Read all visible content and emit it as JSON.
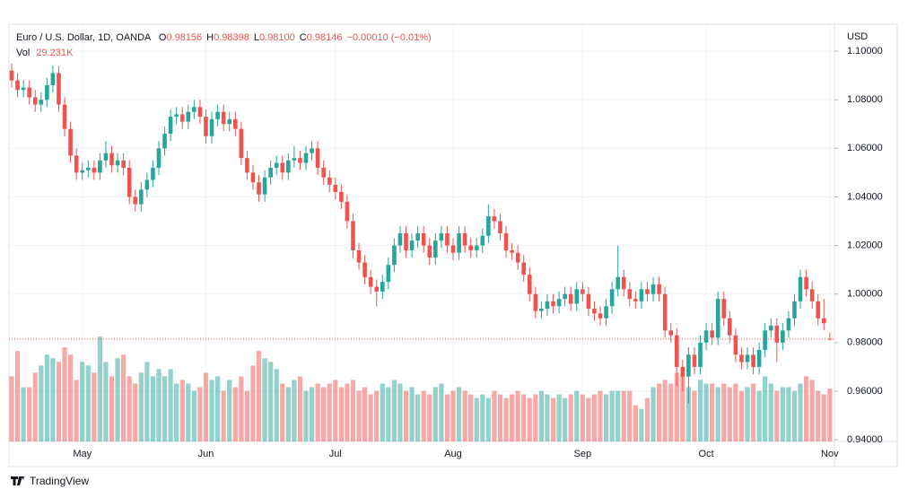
{
  "chart_data": {
    "type": "candlestick",
    "title": "Euro / U.S. Dollar, 1D, OANDA",
    "legend_values": [
      {
        "label": "O",
        "text": "0.98156"
      },
      {
        "label": "H",
        "text": "0.98398"
      },
      {
        "label": "L",
        "text": "0.98100"
      },
      {
        "label": "C",
        "text": "0.98146"
      }
    ],
    "change": "−0.00010 (−0.01%)",
    "volume_name": "Vol",
    "volume_text": "29.231K",
    "currency": "USD",
    "brand": "TradingView",
    "up_color": "#26a69a",
    "down_color": "#ef5350",
    "grid": true,
    "categories": [
      null,
      null,
      null,
      null,
      null,
      null,
      null,
      null,
      null,
      null,
      null,
      null,
      "May",
      null,
      null,
      null,
      null,
      null,
      null,
      null,
      null,
      null,
      null,
      null,
      null,
      null,
      null,
      null,
      null,
      null,
      null,
      null,
      null,
      "Jun",
      null,
      null,
      null,
      null,
      null,
      null,
      null,
      null,
      null,
      null,
      null,
      null,
      null,
      null,
      null,
      null,
      null,
      null,
      null,
      null,
      null,
      "Jul",
      null,
      null,
      null,
      null,
      null,
      null,
      null,
      null,
      null,
      null,
      null,
      null,
      null,
      null,
      null,
      null,
      null,
      null,
      null,
      "Aug",
      null,
      null,
      null,
      null,
      null,
      null,
      null,
      null,
      null,
      null,
      null,
      null,
      null,
      null,
      null,
      null,
      null,
      null,
      null,
      null,
      null,
      "Sep",
      null,
      null,
      null,
      null,
      null,
      null,
      null,
      null,
      null,
      null,
      null,
      null,
      null,
      null,
      null,
      null,
      null,
      null,
      null,
      null,
      "Oct",
      null,
      null,
      null,
      null,
      null,
      null,
      null,
      null,
      null,
      null,
      null,
      null,
      null,
      null,
      null,
      null,
      null,
      null,
      null,
      null,
      "Nov"
    ],
    "open": [
      1.092,
      1.088,
      1.084,
      1.085,
      1.081,
      1.078,
      1.08,
      1.086,
      1.091,
      1.078,
      1.068,
      1.057,
      1.05,
      1.051,
      1.052,
      1.05,
      1.055,
      1.058,
      1.053,
      1.055,
      1.052,
      1.04,
      1.037,
      1.043,
      1.047,
      1.052,
      1.06,
      1.066,
      1.073,
      1.074,
      1.071,
      1.075,
      1.077,
      1.073,
      1.065,
      1.072,
      1.075,
      1.07,
      1.072,
      1.068,
      1.056,
      1.05,
      1.046,
      1.041,
      1.048,
      1.052,
      1.054,
      1.05,
      1.055,
      1.056,
      1.054,
      1.058,
      1.06,
      1.052,
      1.048,
      1.045,
      1.042,
      1.038,
      1.03,
      1.018,
      1.013,
      1.007,
      1.003,
      1.001,
      1.005,
      1.012,
      1.02,
      1.025,
      1.018,
      1.022,
      1.025,
      1.02,
      1.015,
      1.022,
      1.025,
      1.02,
      1.017,
      1.025,
      1.02,
      1.018,
      1.02,
      1.024,
      1.032,
      1.03,
      1.025,
      1.018,
      1.017,
      1.013,
      1.008,
      1.0,
      0.993,
      0.994,
      0.997,
      0.995,
      0.998,
      1.0,
      0.996,
      1.002,
      1.0,
      0.994,
      0.992,
      0.99,
      0.995,
      1.002,
      1.007,
      1.002,
      0.998,
      0.997,
      1.002,
      1.0,
      1.004,
      1.0,
      0.985,
      0.983,
      0.97,
      0.966,
      0.975,
      0.97,
      0.98,
      0.985,
      0.982,
      0.998,
      0.99,
      0.983,
      0.975,
      0.972,
      0.975,
      0.97,
      0.977,
      0.985,
      0.987,
      0.98,
      0.985,
      0.99,
      0.997,
      1.007,
      1.002,
      0.997,
      0.99,
      0.98156
    ],
    "high": [
      1.095,
      1.091,
      1.088,
      1.088,
      1.084,
      1.083,
      1.089,
      1.094,
      1.094,
      1.081,
      1.071,
      1.06,
      1.054,
      1.055,
      1.055,
      1.058,
      1.063,
      1.061,
      1.058,
      1.058,
      1.055,
      1.043,
      1.046,
      1.05,
      1.055,
      1.063,
      1.069,
      1.076,
      1.077,
      1.077,
      1.078,
      1.08,
      1.08,
      1.076,
      1.075,
      1.078,
      1.078,
      1.075,
      1.075,
      1.071,
      1.059,
      1.053,
      1.049,
      1.051,
      1.055,
      1.057,
      1.057,
      1.058,
      1.061,
      1.059,
      1.061,
      1.063,
      1.063,
      1.055,
      1.051,
      1.048,
      1.045,
      1.041,
      1.033,
      1.021,
      1.016,
      1.01,
      1.006,
      1.008,
      1.015,
      1.023,
      1.028,
      1.028,
      1.025,
      1.028,
      1.028,
      1.023,
      1.025,
      1.028,
      1.028,
      1.023,
      1.028,
      1.028,
      1.023,
      1.023,
      1.027,
      1.037,
      1.035,
      1.033,
      1.028,
      1.021,
      1.02,
      1.016,
      1.011,
      1.003,
      0.997,
      1.0,
      1.0,
      1.001,
      1.003,
      1.003,
      1.005,
      1.005,
      1.003,
      0.997,
      0.995,
      0.998,
      1.005,
      1.02,
      1.01,
      1.005,
      1.001,
      1.005,
      1.005,
      1.007,
      1.007,
      1.003,
      0.988,
      0.986,
      0.973,
      0.978,
      0.978,
      0.983,
      0.988,
      0.988,
      1.001,
      1.001,
      0.993,
      0.986,
      0.978,
      0.978,
      0.978,
      0.98,
      0.988,
      0.99,
      0.99,
      0.988,
      0.993,
      1.0,
      1.01,
      1.01,
      1.005,
      1.0,
      0.998,
      0.98398
    ],
    "low": [
      1.085,
      1.081,
      1.081,
      1.078,
      1.075,
      1.075,
      1.077,
      1.083,
      1.075,
      1.065,
      1.054,
      1.047,
      1.047,
      1.048,
      1.047,
      1.047,
      1.052,
      1.05,
      1.05,
      1.049,
      1.037,
      1.034,
      1.034,
      1.04,
      1.044,
      1.049,
      1.057,
      1.063,
      1.07,
      1.068,
      1.068,
      1.072,
      1.07,
      1.062,
      1.062,
      1.069,
      1.067,
      1.067,
      1.065,
      1.053,
      1.047,
      1.043,
      1.038,
      1.038,
      1.045,
      1.049,
      1.047,
      1.047,
      1.052,
      1.051,
      1.051,
      1.055,
      1.049,
      1.045,
      1.042,
      1.039,
      1.035,
      1.027,
      1.015,
      1.01,
      1.004,
      1.0,
      0.995,
      0.998,
      1.002,
      1.009,
      1.017,
      1.015,
      1.015,
      1.019,
      1.017,
      1.012,
      1.012,
      1.019,
      1.017,
      1.014,
      1.014,
      1.017,
      1.015,
      1.015,
      1.017,
      1.021,
      1.027,
      1.022,
      1.015,
      1.014,
      1.01,
      1.005,
      0.997,
      0.99,
      0.99,
      0.991,
      0.992,
      0.992,
      0.995,
      0.993,
      0.993,
      0.997,
      0.991,
      0.989,
      0.987,
      0.987,
      0.992,
      0.999,
      0.999,
      0.995,
      0.994,
      0.994,
      0.997,
      0.997,
      0.997,
      0.982,
      0.98,
      0.962,
      0.96,
      0.955,
      0.967,
      0.967,
      0.977,
      0.979,
      0.979,
      0.987,
      0.98,
      0.972,
      0.969,
      0.969,
      0.967,
      0.967,
      0.974,
      0.982,
      0.972,
      0.977,
      0.982,
      0.987,
      0.994,
      0.999,
      0.994,
      0.987,
      0.985,
      0.981
    ],
    "close": [
      1.088,
      1.084,
      1.085,
      1.081,
      1.078,
      1.08,
      1.086,
      1.091,
      1.078,
      1.068,
      1.057,
      1.05,
      1.051,
      1.052,
      1.05,
      1.055,
      1.058,
      1.053,
      1.055,
      1.052,
      1.04,
      1.037,
      1.043,
      1.047,
      1.052,
      1.06,
      1.066,
      1.073,
      1.074,
      1.071,
      1.075,
      1.077,
      1.073,
      1.065,
      1.072,
      1.075,
      1.07,
      1.072,
      1.068,
      1.056,
      1.05,
      1.046,
      1.041,
      1.048,
      1.052,
      1.054,
      1.05,
      1.055,
      1.056,
      1.054,
      1.058,
      1.06,
      1.052,
      1.048,
      1.045,
      1.042,
      1.038,
      1.03,
      1.018,
      1.013,
      1.007,
      1.003,
      1.001,
      1.005,
      1.012,
      1.02,
      1.025,
      1.018,
      1.022,
      1.025,
      1.02,
      1.015,
      1.022,
      1.025,
      1.02,
      1.017,
      1.025,
      1.02,
      1.018,
      1.02,
      1.024,
      1.032,
      1.03,
      1.025,
      1.018,
      1.017,
      1.013,
      1.008,
      1.0,
      0.993,
      0.994,
      0.997,
      0.995,
      0.998,
      1.0,
      0.996,
      1.002,
      1.0,
      0.994,
      0.992,
      0.99,
      0.995,
      1.002,
      1.007,
      1.002,
      0.998,
      0.997,
      1.002,
      1.0,
      1.004,
      1.0,
      0.985,
      0.983,
      0.97,
      0.966,
      0.975,
      0.97,
      0.98,
      0.985,
      0.982,
      0.998,
      0.99,
      0.983,
      0.975,
      0.972,
      0.975,
      0.97,
      0.977,
      0.985,
      0.987,
      0.98,
      0.985,
      0.99,
      0.997,
      1.007,
      1.002,
      0.997,
      0.99,
      0.988,
      0.98146
    ],
    "volume": [
      36,
      50,
      30,
      30,
      38,
      42,
      48,
      46,
      44,
      52,
      48,
      34,
      44,
      42,
      38,
      58,
      44,
      36,
      46,
      48,
      36,
      32,
      38,
      44,
      36,
      40,
      36,
      40,
      32,
      34,
      32,
      28,
      30,
      38,
      34,
      36,
      28,
      34,
      30,
      36,
      28,
      42,
      50,
      46,
      44,
      40,
      32,
      30,
      34,
      36,
      28,
      30,
      32,
      30,
      32,
      34,
      30,
      32,
      34,
      28,
      30,
      26,
      28,
      32,
      30,
      34,
      32,
      28,
      30,
      26,
      28,
      26,
      30,
      32,
      26,
      28,
      30,
      28,
      26,
      24,
      26,
      24,
      28,
      26,
      24,
      26,
      28,
      26,
      24,
      26,
      28,
      26,
      24,
      26,
      24,
      26,
      28,
      26,
      24,
      26,
      28,
      26,
      28,
      28,
      28,
      28,
      20,
      18,
      24,
      30,
      32,
      34,
      32,
      38,
      36,
      30,
      28,
      34,
      32,
      32,
      30,
      32,
      30,
      32,
      28,
      30,
      32,
      28,
      36,
      32,
      28,
      30,
      30,
      28,
      32,
      36,
      34,
      28,
      26,
      29.231
    ],
    "ylim": [
      0.9393,
      1.1111
    ],
    "yticks": [
      {
        "value": 0.94,
        "label": "0.94000"
      },
      {
        "value": 0.96,
        "label": "0.96000"
      },
      {
        "value": 0.98,
        "label": "0.98000"
      },
      {
        "value": 1.0,
        "label": "1.00000"
      },
      {
        "value": 1.02,
        "label": "1.02000"
      },
      {
        "value": 1.04,
        "label": "1.04000"
      },
      {
        "value": 1.06,
        "label": "1.06000"
      },
      {
        "value": 1.08,
        "label": "1.08000"
      },
      {
        "value": 1.1,
        "label": "1.10000"
      }
    ]
  }
}
